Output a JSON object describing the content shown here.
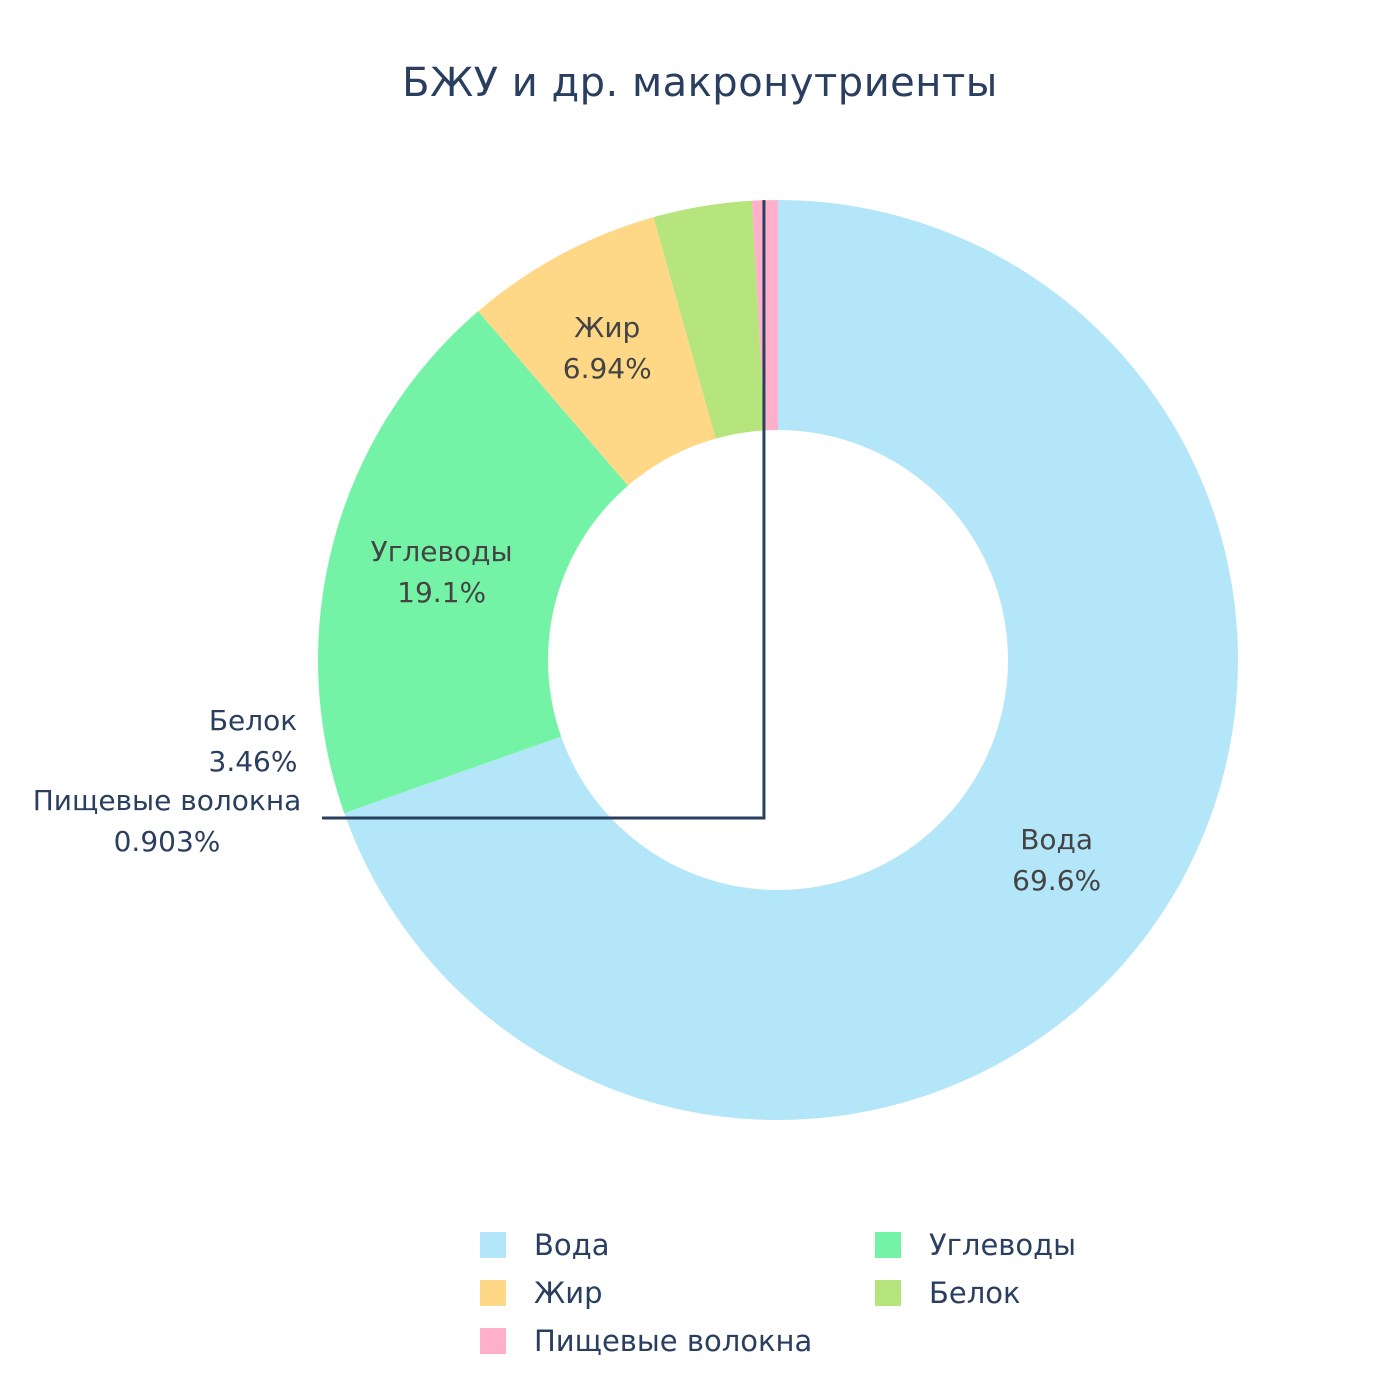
{
  "chart_data": {
    "type": "pie",
    "title": "БЖУ и др. макронутриенты",
    "hole": true,
    "labels": [
      "Вода",
      "Углеводы",
      "Жир",
      "Белок",
      "Пищевые волокна"
    ],
    "values": [
      69.6,
      19.1,
      6.94,
      3.46,
      0.903
    ],
    "percent_labels": [
      "69.6%",
      "19.1%",
      "6.94%",
      "3.46%",
      "0.903%"
    ],
    "colors": [
      "#b3e6f8",
      "#74f3a6",
      "#fed886",
      "#b5e57c",
      "#feb0cb"
    ],
    "legend": {
      "placement": "bottom",
      "items": [
        "Вода",
        "Углеводы",
        "Жир",
        "Белок",
        "Пищевые волокна"
      ]
    }
  }
}
